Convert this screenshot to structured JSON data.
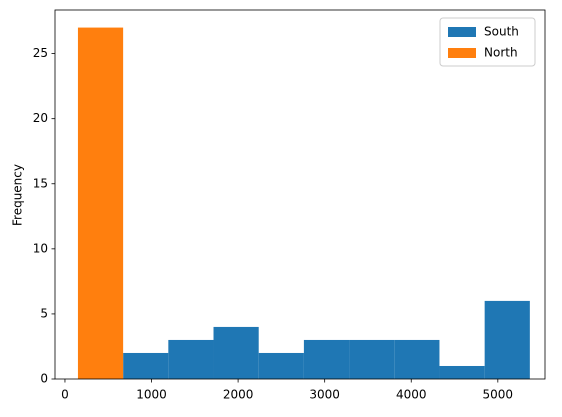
{
  "chart_data": {
    "type": "histogram",
    "ylabel": "Frequency",
    "bins": [
      150,
      672,
      1194,
      1716,
      2238,
      2760,
      3282,
      3804,
      4326,
      4848,
      5370
    ],
    "series": [
      {
        "name": "South",
        "color": "#1f77b4",
        "values": [
          0,
          2,
          3,
          4,
          2,
          3,
          3,
          3,
          1,
          6
        ]
      },
      {
        "name": "North",
        "color": "#ff7f0e",
        "values": [
          27,
          0,
          0,
          0,
          0,
          0,
          0,
          0,
          0,
          0
        ]
      }
    ],
    "xlim": [
      -115,
      5545
    ],
    "ylim": [
      0,
      28.35
    ],
    "xticks": [
      0,
      1000,
      2000,
      3000,
      4000,
      5000
    ],
    "yticks": [
      0,
      5,
      10,
      15,
      20,
      25
    ],
    "legend": "upper right"
  }
}
